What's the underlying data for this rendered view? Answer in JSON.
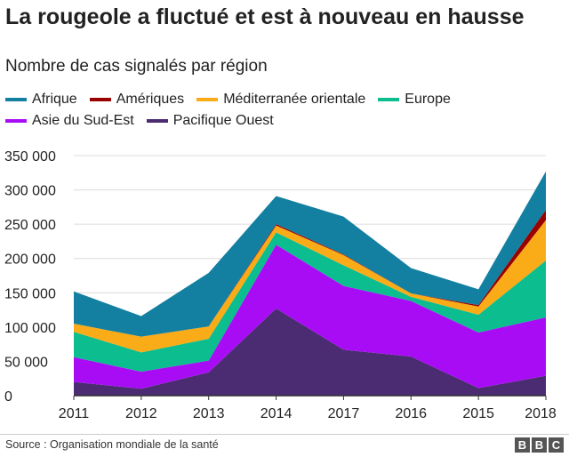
{
  "title": "La rougeole a fluctué et est à nouveau en hausse",
  "subtitle": "Nombre de cas signalés par région",
  "source": "Source : Organisation mondiale de la santé",
  "logo": "BBC",
  "chart_data": {
    "type": "area",
    "stacked": true,
    "title": "La rougeole a fluctué et est à nouveau en hausse",
    "subtitle": "Nombre de cas signalés par région",
    "categories": [
      "2011",
      "2012",
      "2013",
      "2014",
      "2017",
      "2016",
      "2015",
      "2018"
    ],
    "ylim": [
      0,
      350000
    ],
    "yticks": [
      0,
      50000,
      100000,
      150000,
      200000,
      250000,
      300000,
      350000
    ],
    "ytick_labels": [
      "0",
      "50 000",
      "100 000",
      "150 000",
      "200 000",
      "250 000",
      "300 000",
      "350 000"
    ],
    "grid": true,
    "legend_position": "top",
    "legend_order": [
      "Afrique",
      "Amériques",
      "Méditerranée orientale",
      "Europe",
      "Asie du Sud-Est",
      "Pacifique Ouest"
    ],
    "series": [
      {
        "name": "Pacifique Ouest",
        "color": "#4b2c72",
        "values": [
          20000,
          10000,
          34000,
          127000,
          67000,
          57000,
          11000,
          29000
        ]
      },
      {
        "name": "Asie du Sud-Est",
        "color": "#a80cf5",
        "values": [
          36000,
          25000,
          17000,
          93000,
          93000,
          81000,
          81000,
          85000
        ]
      },
      {
        "name": "Europe",
        "color": "#0bbd8f",
        "values": [
          37000,
          28000,
          32000,
          18000,
          30000,
          6000,
          26000,
          83000
        ]
      },
      {
        "name": "Méditerranée orientale",
        "color": "#faab18",
        "values": [
          12000,
          23000,
          18000,
          10000,
          15000,
          5000,
          12000,
          59000
        ]
      },
      {
        "name": "Amériques",
        "color": "#990000",
        "values": [
          0,
          0,
          0,
          2000,
          1000,
          0,
          2000,
          15000
        ]
      },
      {
        "name": "Afrique",
        "color": "#1380a1",
        "values": [
          47000,
          30000,
          78000,
          41000,
          55000,
          37000,
          23000,
          56000
        ]
      }
    ]
  }
}
